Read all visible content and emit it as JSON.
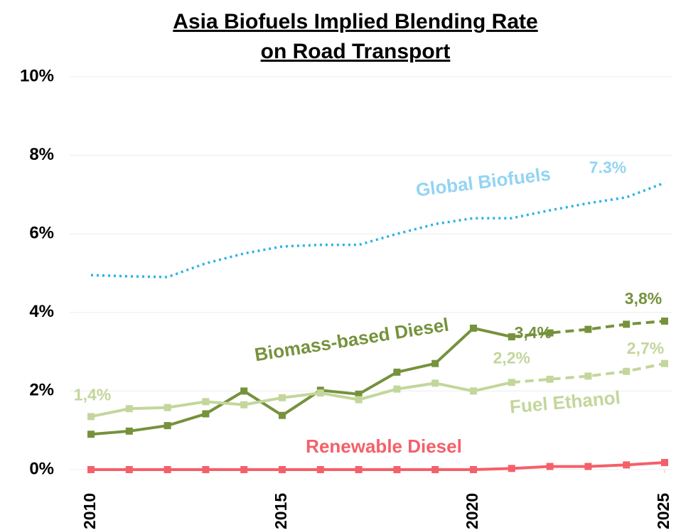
{
  "chart_data": {
    "type": "line",
    "title": [
      "Asia Biofuels Implied Blending Rate",
      "on Road Transport"
    ],
    "x": [
      2010,
      2011,
      2012,
      2013,
      2014,
      2015,
      2016,
      2017,
      2018,
      2019,
      2020,
      2021,
      2022,
      2023,
      2024,
      2025
    ],
    "xlim": [
      2010,
      2025
    ],
    "xticks": [
      2010,
      2015,
      2020,
      2025
    ],
    "ylim": [
      0,
      10
    ],
    "yticks": [
      {
        "value": 0,
        "label": "0%"
      },
      {
        "value": 2,
        "label": "2%"
      },
      {
        "value": 4,
        "label": "4%"
      },
      {
        "value": 6,
        "label": "6%"
      },
      {
        "value": 8,
        "label": "8%"
      },
      {
        "value": 10,
        "label": "10%"
      }
    ],
    "grid": true,
    "series": [
      {
        "name": "Global Biofuels",
        "color": "#2bb3e6",
        "label_color": "#93d4f3",
        "style": "dotted",
        "marker": "none",
        "values": [
          4.95,
          4.92,
          4.9,
          5.25,
          5.5,
          5.68,
          5.72,
          5.72,
          6.0,
          6.25,
          6.4,
          6.4,
          6.6,
          6.78,
          6.93,
          7.3
        ],
        "value_labels": [
          null,
          null,
          null,
          null,
          null,
          null,
          null,
          null,
          null,
          null,
          null,
          null,
          null,
          null,
          null,
          "7.3%"
        ]
      },
      {
        "name": "Biomass-based Diesel",
        "color": "#76923c",
        "label_color": "#76923c",
        "style": "solid",
        "dashed_from": 2021,
        "marker": "square",
        "values": [
          0.9,
          0.98,
          1.12,
          1.42,
          2.0,
          1.38,
          2.02,
          1.92,
          2.48,
          2.7,
          3.6,
          3.38,
          3.48,
          3.57,
          3.7,
          3.78
        ],
        "value_labels": [
          null,
          null,
          null,
          null,
          null,
          null,
          null,
          null,
          null,
          null,
          null,
          "3,4%",
          null,
          null,
          null,
          "3,8%"
        ]
      },
      {
        "name": "Fuel Ethanol",
        "color": "#c3d69b",
        "label_color": "#c3d69b",
        "style": "solid",
        "dashed_from": 2021,
        "marker": "square",
        "values": [
          1.35,
          1.55,
          1.58,
          1.73,
          1.65,
          1.83,
          1.95,
          1.78,
          2.05,
          2.2,
          2.0,
          2.22,
          2.3,
          2.38,
          2.5,
          2.7
        ],
        "value_labels": [
          "1,4%",
          null,
          null,
          null,
          null,
          null,
          null,
          null,
          null,
          null,
          null,
          "2,2%",
          null,
          null,
          null,
          "2,7%"
        ]
      },
      {
        "name": "Renewable Diesel",
        "color": "#f4606a",
        "label_color": "#f4606a",
        "style": "solid",
        "marker": "square",
        "values": [
          0,
          0,
          0,
          0,
          0,
          0,
          0,
          0,
          0,
          0,
          0,
          0.03,
          0.08,
          0.08,
          0.12,
          0.18
        ]
      }
    ]
  }
}
